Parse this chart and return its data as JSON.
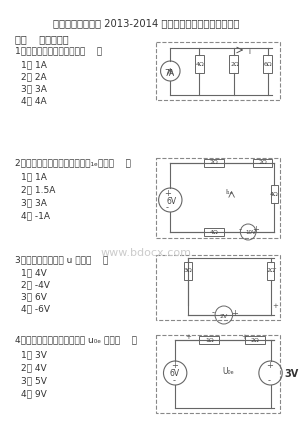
{
  "bg_color": "#ffffff",
  "title": "南京信息工程大学 2013-2014 电路分析基础期末模拟测试题",
  "section": "一、    单项选择题",
  "q1_text": "1、图示电路中电流ｉ等于（    ）",
  "q1_opts": [
    "1） 1A",
    "2） 2A",
    "3） 3A",
    "4） 4A"
  ],
  "q2_text": "2、图示单口网络的短路电流ｉ₁ₑ等于（    ）",
  "q2_opts": [
    "1） 1A",
    "2） 1.5A",
    "3） 3A",
    "4） -1A"
  ],
  "q3_text": "3、图示电路中电压 u 等于（    ）",
  "q3_opts": [
    "1） 4V",
    "2） -4V",
    "3） 6V",
    "4） -6V"
  ],
  "q4_text": "4、图示单口网络的开路电压 u₀ₑ 等于（    ）",
  "q4_opts": [
    "1） 3V",
    "2） 4V",
    "3） 5V",
    "4） 9V"
  ],
  "watermark": "www.bdocx.com"
}
